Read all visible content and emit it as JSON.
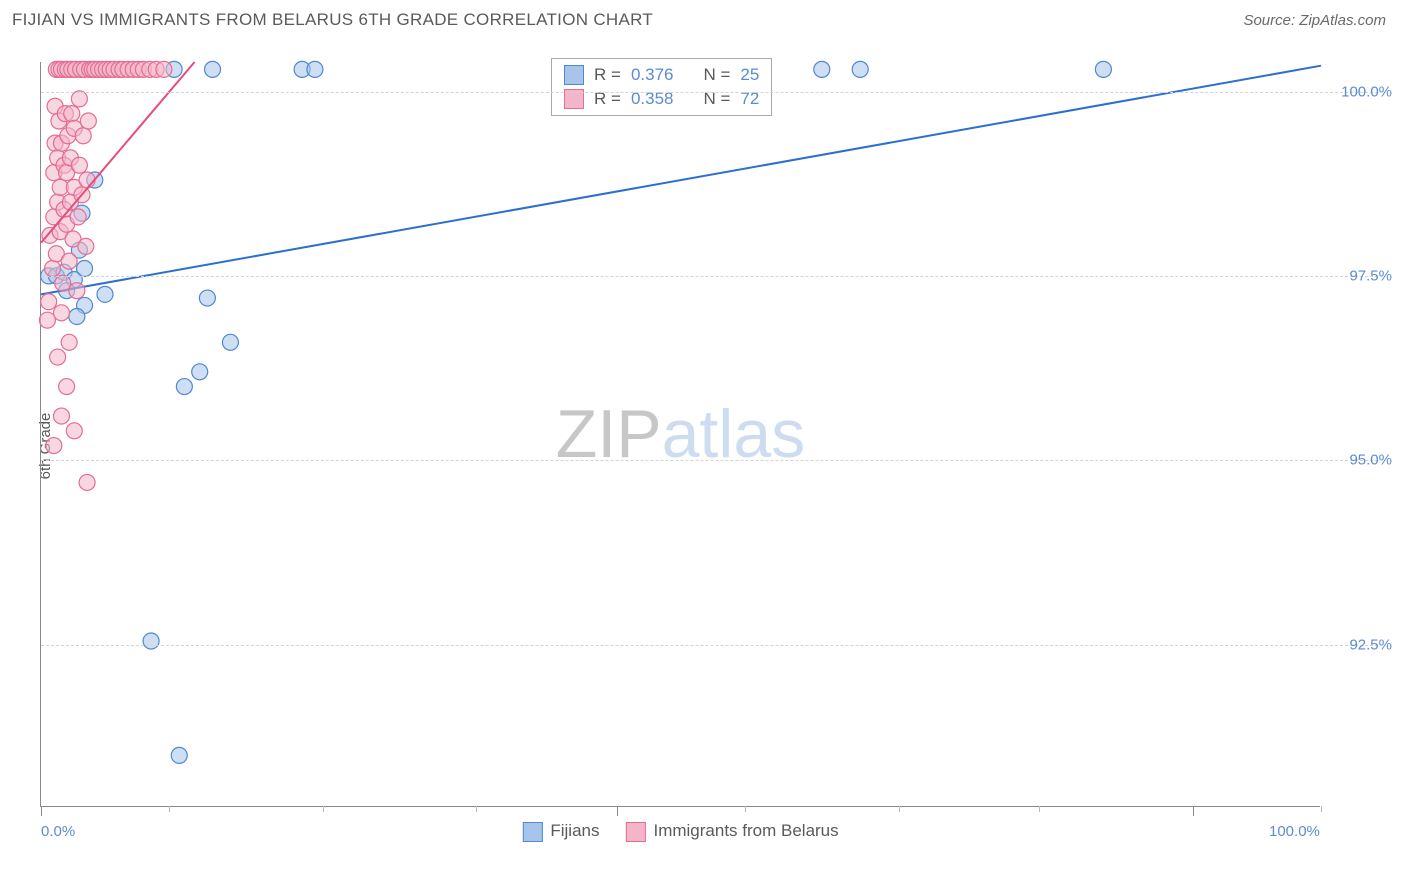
{
  "title": "FIJIAN VS IMMIGRANTS FROM BELARUS 6TH GRADE CORRELATION CHART",
  "source": "Source: ZipAtlas.com",
  "watermark": {
    "part1": "ZIP",
    "part2": "atlas"
  },
  "chart": {
    "type": "scatter",
    "ylabel": "6th Grade",
    "xlim": [
      0,
      100
    ],
    "ylim": [
      90.3,
      100.4
    ],
    "x_ticks_major": [
      0,
      45,
      90
    ],
    "x_ticks_minor": [
      10,
      22,
      34,
      55,
      67,
      78,
      100
    ],
    "x_tick_labels": [
      {
        "value": 0,
        "label": "0.0%"
      },
      {
        "value": 100,
        "label": "100.0%"
      }
    ],
    "y_gridlines": [
      92.5,
      95.0,
      97.5,
      100.0
    ],
    "y_tick_labels": [
      "92.5%",
      "95.0%",
      "97.5%",
      "100.0%"
    ],
    "background_color": "#ffffff",
    "grid_color": "#d4d4d4",
    "axis_color": "#888888",
    "tick_label_color": "#5b8bd4",
    "marker_radius": 8,
    "marker_opacity": 0.55,
    "line_width": 2,
    "series": [
      {
        "name": "Fijians",
        "color_fill": "#a7c4ea",
        "color_stroke": "#4f87d1",
        "line_color": "#2c6fd1",
        "R": "0.376",
        "N": "25",
        "correlation_line": {
          "x1": 0,
          "y1": 97.25,
          "x2": 100,
          "y2": 100.35
        },
        "points": [
          [
            0.6,
            97.5
          ],
          [
            1.2,
            97.5
          ],
          [
            1.8,
            97.55
          ],
          [
            2.6,
            97.45
          ],
          [
            2.0,
            97.3
          ],
          [
            3.0,
            97.85
          ],
          [
            3.2,
            98.35
          ],
          [
            3.4,
            97.1
          ],
          [
            3.4,
            97.6
          ],
          [
            4.2,
            98.8
          ],
          [
            5.0,
            97.25
          ],
          [
            8.6,
            92.55
          ],
          [
            10.4,
            100.3
          ],
          [
            12.4,
            96.2
          ],
          [
            10.8,
            91.0
          ],
          [
            13.0,
            97.2
          ],
          [
            13.4,
            100.3
          ],
          [
            14.8,
            96.6
          ],
          [
            2.8,
            96.95
          ],
          [
            20.4,
            100.3
          ],
          [
            21.4,
            100.3
          ],
          [
            61.0,
            100.3
          ],
          [
            64.0,
            100.3
          ],
          [
            83.0,
            100.3
          ],
          [
            11.2,
            96.0
          ]
        ]
      },
      {
        "name": "Immigrants from Belarus",
        "color_fill": "#f3b6c8",
        "color_stroke": "#e56d93",
        "line_color": "#e84a7a",
        "R": "0.358",
        "N": "72",
        "correlation_line": {
          "x1": 0,
          "y1": 97.95,
          "x2": 12,
          "y2": 100.4
        },
        "points": [
          [
            0.5,
            96.9
          ],
          [
            0.6,
            97.15
          ],
          [
            0.7,
            98.05
          ],
          [
            0.9,
            97.6
          ],
          [
            1.0,
            98.3
          ],
          [
            1.0,
            98.9
          ],
          [
            1.1,
            99.3
          ],
          [
            1.1,
            99.8
          ],
          [
            1.2,
            97.8
          ],
          [
            1.2,
            100.3
          ],
          [
            1.3,
            98.5
          ],
          [
            1.3,
            99.1
          ],
          [
            1.4,
            99.6
          ],
          [
            1.4,
            100.3
          ],
          [
            1.5,
            98.1
          ],
          [
            1.5,
            98.7
          ],
          [
            1.6,
            99.3
          ],
          [
            1.6,
            100.3
          ],
          [
            1.7,
            97.4
          ],
          [
            1.8,
            98.4
          ],
          [
            1.8,
            99.0
          ],
          [
            1.9,
            99.7
          ],
          [
            1.9,
            100.3
          ],
          [
            2.0,
            98.2
          ],
          [
            2.0,
            98.9
          ],
          [
            2.1,
            99.4
          ],
          [
            2.1,
            100.3
          ],
          [
            2.2,
            97.7
          ],
          [
            2.3,
            98.5
          ],
          [
            2.3,
            99.1
          ],
          [
            2.4,
            99.7
          ],
          [
            2.4,
            100.3
          ],
          [
            2.5,
            98.0
          ],
          [
            2.6,
            98.7
          ],
          [
            2.6,
            99.5
          ],
          [
            2.7,
            100.3
          ],
          [
            2.8,
            97.3
          ],
          [
            2.9,
            98.3
          ],
          [
            3.0,
            99.0
          ],
          [
            3.0,
            99.9
          ],
          [
            3.1,
            100.3
          ],
          [
            3.2,
            98.6
          ],
          [
            3.3,
            99.4
          ],
          [
            3.4,
            100.3
          ],
          [
            3.5,
            97.9
          ],
          [
            3.6,
            98.8
          ],
          [
            3.7,
            99.6
          ],
          [
            3.8,
            100.3
          ],
          [
            4.0,
            100.3
          ],
          [
            4.2,
            100.3
          ],
          [
            4.5,
            100.3
          ],
          [
            4.8,
            100.3
          ],
          [
            5.1,
            100.3
          ],
          [
            5.4,
            100.3
          ],
          [
            5.7,
            100.3
          ],
          [
            6.1,
            100.3
          ],
          [
            6.4,
            100.3
          ],
          [
            6.8,
            100.3
          ],
          [
            7.2,
            100.3
          ],
          [
            7.6,
            100.3
          ],
          [
            8.0,
            100.3
          ],
          [
            8.5,
            100.3
          ],
          [
            9.0,
            100.3
          ],
          [
            9.6,
            100.3
          ],
          [
            2.0,
            96.0
          ],
          [
            2.6,
            95.4
          ],
          [
            1.6,
            97.0
          ],
          [
            3.6,
            94.7
          ],
          [
            1.0,
            95.2
          ],
          [
            1.6,
            95.6
          ],
          [
            1.3,
            96.4
          ],
          [
            2.2,
            96.6
          ]
        ]
      }
    ],
    "legend_top_labels": {
      "R": "R =",
      "N": "N ="
    },
    "legend_bottom": [
      "Fijians",
      "Immigrants from Belarus"
    ]
  }
}
